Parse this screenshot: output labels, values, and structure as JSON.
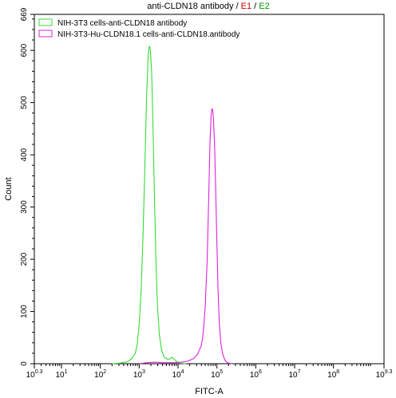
{
  "chart_data": {
    "type": "line",
    "title_parts": [
      {
        "text": "anti-CLDN18 antibody",
        "color": "#000000"
      },
      {
        "text": " / ",
        "color": "#000000"
      },
      {
        "text": "E1",
        "color": "#cc0000"
      },
      {
        "text": " / ",
        "color": "#000000"
      },
      {
        "text": "E2",
        "color": "#00a000"
      }
    ],
    "xlabel": "FITC-A",
    "ylabel": "Count",
    "x_scale": "log",
    "xlim": [
      2,
      2000000000
    ],
    "ylim": [
      0,
      669
    ],
    "y_ticks": [
      0,
      100,
      200,
      300,
      400,
      500,
      600,
      669
    ],
    "x_ticks": [
      {
        "value": 2,
        "base": "10",
        "exp": "0.3"
      },
      {
        "value": 10,
        "base": "10",
        "exp": "1"
      },
      {
        "value": 100,
        "base": "10",
        "exp": "2"
      },
      {
        "value": 1000,
        "base": "10",
        "exp": "3"
      },
      {
        "value": 10000,
        "base": "10",
        "exp": "4"
      },
      {
        "value": 100000,
        "base": "10",
        "exp": "5"
      },
      {
        "value": 1000000,
        "base": "10",
        "exp": "6"
      },
      {
        "value": 10000000,
        "base": "10",
        "exp": "7"
      },
      {
        "value": 100000000,
        "base": "10",
        "exp": "8"
      },
      {
        "value": 2000000000,
        "base": "10",
        "exp": "9.3"
      }
    ],
    "legend_position": "top-left",
    "series": [
      {
        "name": "NIH-3T3 cells-anti-CLDN18 antibody",
        "color": "#33dd33",
        "points": [
          [
            200,
            0
          ],
          [
            316,
            1
          ],
          [
            501,
            4
          ],
          [
            631,
            9
          ],
          [
            794,
            20
          ],
          [
            891,
            38
          ],
          [
            1000,
            75
          ],
          [
            1122,
            140
          ],
          [
            1259,
            250
          ],
          [
            1413,
            390
          ],
          [
            1549,
            510
          ],
          [
            1698,
            590
          ],
          [
            1778,
            605
          ],
          [
            1862,
            608
          ],
          [
            1950,
            598
          ],
          [
            2089,
            560
          ],
          [
            2239,
            470
          ],
          [
            2455,
            330
          ],
          [
            2692,
            200
          ],
          [
            2951,
            110
          ],
          [
            3311,
            55
          ],
          [
            3802,
            25
          ],
          [
            4467,
            12
          ],
          [
            5623,
            8
          ],
          [
            7079,
            12
          ],
          [
            8913,
            5
          ],
          [
            11220,
            1
          ],
          [
            15849,
            0
          ]
        ]
      },
      {
        "name": "NIH-3T3-Hu-CLDN18.1 cells-anti-CLDN18.antibody",
        "color": "#dd22dd",
        "points": [
          [
            1000,
            0
          ],
          [
            1585,
            2
          ],
          [
            2512,
            3
          ],
          [
            3981,
            2
          ],
          [
            7943,
            2
          ],
          [
            12589,
            3
          ],
          [
            17783,
            5
          ],
          [
            25119,
            10
          ],
          [
            31623,
            18
          ],
          [
            39811,
            35
          ],
          [
            44668,
            60
          ],
          [
            50119,
            110
          ],
          [
            56234,
            200
          ],
          [
            61660,
            320
          ],
          [
            66069,
            420
          ],
          [
            70795,
            475
          ],
          [
            74131,
            488
          ],
          [
            77625,
            487
          ],
          [
            81283,
            470
          ],
          [
            87096,
            420
          ],
          [
            93325,
            330
          ],
          [
            100000,
            230
          ],
          [
            107152,
            140
          ],
          [
            114815,
            80
          ],
          [
            125893,
            40
          ],
          [
            141254,
            18
          ],
          [
            158489,
            8
          ],
          [
            177828,
            3
          ],
          [
            199526,
            1
          ],
          [
            251189,
            0
          ]
        ]
      }
    ]
  }
}
